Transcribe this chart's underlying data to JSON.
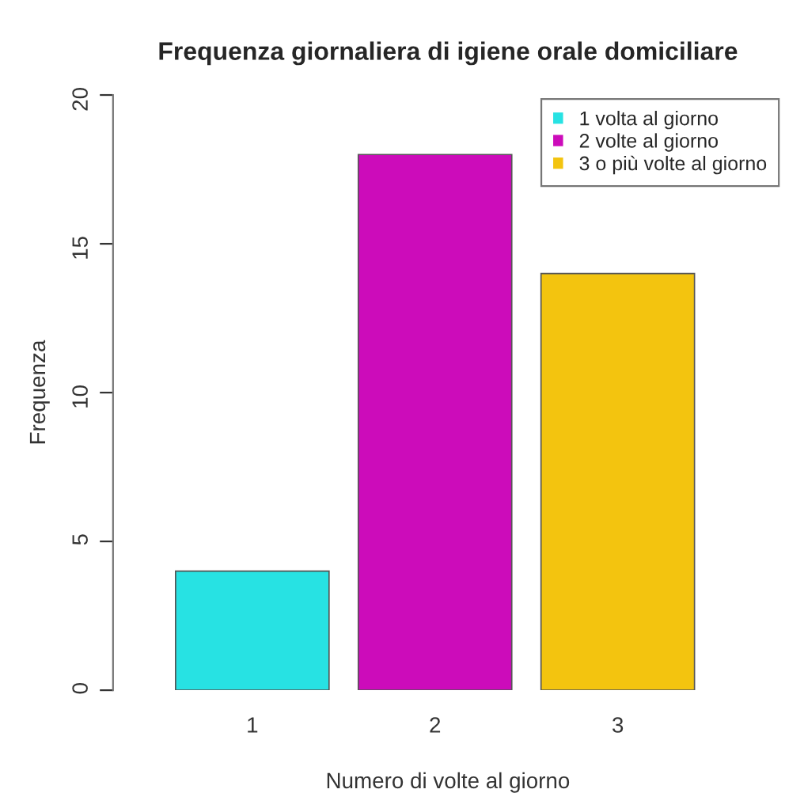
{
  "chart_data": {
    "type": "bar",
    "title": "Frequenza giornaliera di igiene orale domiciliare",
    "xlabel": "Numero di volte al giorno",
    "ylabel": "Frequenza",
    "categories": [
      "1",
      "2",
      "3"
    ],
    "series": [
      {
        "name": "1 volta al giorno",
        "color": "#27e2e3",
        "values": [
          4,
          null,
          null
        ]
      },
      {
        "name": "2 volte al giorno",
        "color": "#cc0cba",
        "values": [
          null,
          18,
          null
        ]
      },
      {
        "name": "3 o più volte al giorno",
        "color": "#f3c40f",
        "values": [
          null,
          null,
          14
        ]
      }
    ],
    "ylim": [
      0,
      20
    ],
    "yticks": [
      0,
      5,
      10,
      15,
      20
    ],
    "grid": false,
    "legend": "top right"
  }
}
